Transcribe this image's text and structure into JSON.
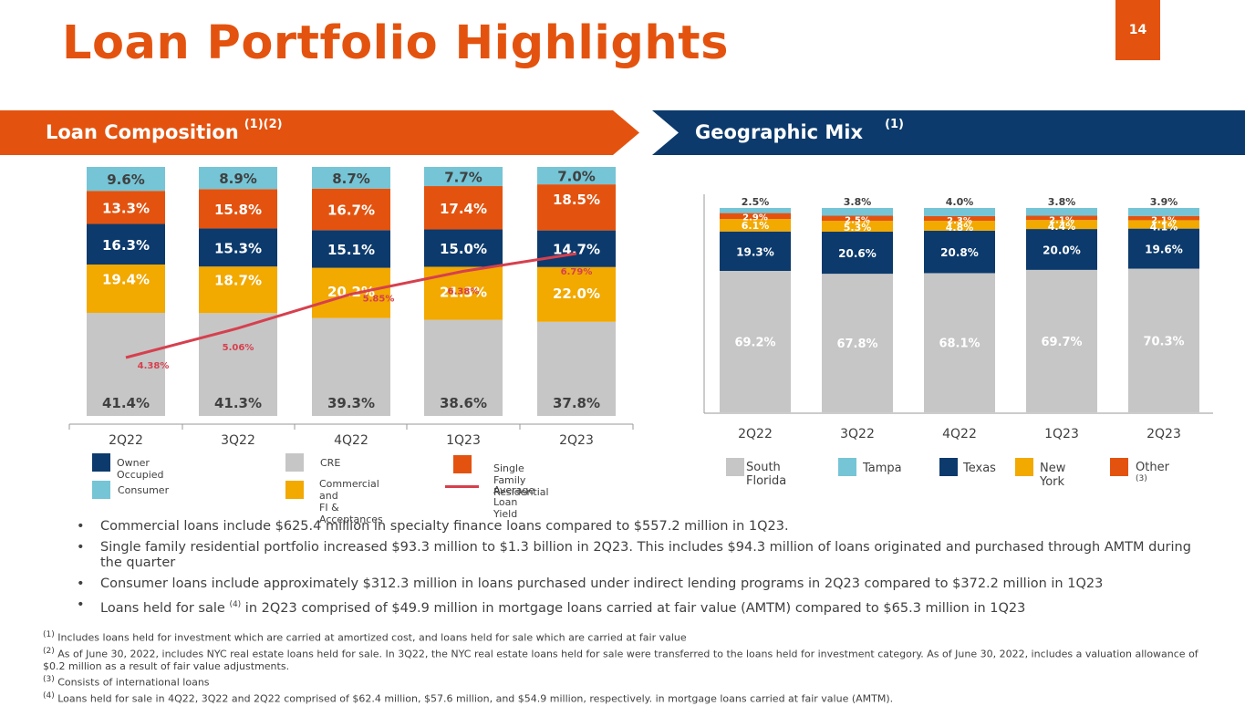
{
  "title": "Loan Portfolio Highlights",
  "page_number": "14",
  "left_banner": {
    "label": "Loan Composition",
    "sup": "(1)(2)"
  },
  "right_banner": {
    "label": "Geographic Mix",
    "sup": "(1)"
  },
  "colors": {
    "orange": "#e3530f",
    "navy": "#0c3a6c",
    "gray": "#c6c6c6",
    "gold": "#f2a900",
    "teal": "#75c5d6",
    "red_line": "#d6404e"
  },
  "chart_data": [
    {
      "type": "bar",
      "stacked": true,
      "title": "Loan Composition",
      "categories": [
        "2Q22",
        "3Q22",
        "4Q22",
        "1Q23",
        "2Q23"
      ],
      "series": [
        {
          "name": "CRE",
          "values": [
            41.4,
            41.3,
            39.3,
            38.6,
            37.8
          ],
          "labels": [
            "41.4%",
            "41.3%",
            "39.3%",
            "38.6%",
            "37.8%"
          ]
        },
        {
          "name": "Commercial and FI & Acceptances",
          "values": [
            19.4,
            18.7,
            20.2,
            21.3,
            22.0
          ],
          "labels": [
            "19.4%",
            "18.7%",
            "20.2%",
            "21.3%",
            "22.0%"
          ]
        },
        {
          "name": "Owner Occupied",
          "values": [
            16.3,
            15.3,
            15.1,
            15.0,
            14.7
          ],
          "labels": [
            "16.3%",
            "15.3%",
            "15.1%",
            "15.0%",
            "14.7%"
          ]
        },
        {
          "name": "Single Family Residential",
          "values": [
            13.3,
            15.8,
            16.7,
            17.4,
            18.5
          ],
          "labels": [
            "13.3%",
            "15.8%",
            "16.7%",
            "17.4%",
            "18.5%"
          ]
        },
        {
          "name": "Consumer",
          "values": [
            9.6,
            8.9,
            8.7,
            7.7,
            7.0
          ],
          "labels": [
            "9.6%",
            "8.9%",
            "8.7%",
            "7.7%",
            "7.0%"
          ]
        }
      ],
      "line": {
        "name": "Average Loan Yield",
        "values": [
          4.38,
          5.06,
          5.85,
          6.38,
          6.79
        ],
        "labels": [
          "4.38%",
          "5.06%",
          "5.85%",
          "6.38%",
          "6.79%"
        ]
      },
      "legend": [
        "Owner Occupied",
        "CRE",
        "Single Family Residential",
        "Consumer",
        "Commercial and FI & Acceptances",
        "Average Loan Yield"
      ],
      "ylim": [
        0,
        100
      ]
    },
    {
      "type": "bar",
      "stacked": true,
      "title": "Geographic Mix",
      "categories": [
        "2Q22",
        "3Q22",
        "4Q22",
        "1Q23",
        "2Q23"
      ],
      "series": [
        {
          "name": "South Florida",
          "values": [
            69.2,
            67.8,
            68.1,
            69.7,
            70.3
          ],
          "labels": [
            "69.2%",
            "67.8%",
            "68.1%",
            "69.7%",
            "70.3%"
          ]
        },
        {
          "name": "Texas",
          "values": [
            19.3,
            20.6,
            20.8,
            20.0,
            19.6
          ],
          "labels": [
            "19.3%",
            "20.6%",
            "20.8%",
            "20.0%",
            "19.6%"
          ]
        },
        {
          "name": "New York",
          "values": [
            6.1,
            5.3,
            4.8,
            4.4,
            4.1
          ],
          "labels": [
            "6.1%",
            "5.3%",
            "4.8%",
            "4.4%",
            "4.1%"
          ]
        },
        {
          "name": "Other",
          "values": [
            2.9,
            2.5,
            2.3,
            2.1,
            2.1
          ],
          "labels": [
            "2.9%",
            "2.5%",
            "2.3%",
            "2.1%",
            "2.1%"
          ]
        },
        {
          "name": "Tampa",
          "values": [
            2.5,
            3.8,
            4.0,
            3.8,
            3.9
          ],
          "labels": [
            "2.5%",
            "3.8%",
            "4.0%",
            "3.8%",
            "3.9%"
          ]
        }
      ],
      "legend": [
        "South Florida",
        "Tampa",
        "Texas",
        "New York",
        "Other (3)"
      ],
      "ylim": [
        0,
        100
      ]
    }
  ],
  "left_legend": [
    {
      "label": "Owner Occupied",
      "color": "#0c3a6c",
      "kind": "box"
    },
    {
      "label": "CRE",
      "color": "#c6c6c6",
      "kind": "box"
    },
    {
      "label": "Single Family Residential",
      "color": "#e3530f",
      "kind": "box"
    },
    {
      "label": "Consumer",
      "color": "#75c5d6",
      "kind": "box"
    },
    {
      "label": "Commercial and\nFI & Acceptances",
      "color": "#f2a900",
      "kind": "box"
    },
    {
      "label": "Average Loan Yield",
      "color": "#d6404e",
      "kind": "line"
    }
  ],
  "right_legend": [
    {
      "label": "South Florida",
      "color": "#c6c6c6"
    },
    {
      "label": "Tampa",
      "color": "#75c5d6"
    },
    {
      "label": "Texas",
      "color": "#0c3a6c"
    },
    {
      "label": "New York",
      "color": "#f2a900"
    },
    {
      "label": "Other",
      "sup": "(3)",
      "color": "#e3530f"
    }
  ],
  "bullets": [
    {
      "text": "Commercial loans include $625.4 million in specialty finance loans compared to $557.2 million in 1Q23."
    },
    {
      "text": "Single family residential portfolio increased $93.3 million to $1.3 billion in 2Q23. This includes $94.3 million of loans originated and purchased through AMTM during the quarter"
    },
    {
      "text": "Consumer loans include approximately $312.3 million in loans purchased under indirect lending programs in 2Q23 compared to $372.2 million in 1Q23"
    },
    {
      "pre": "Loans held for sale ",
      "sup": "(4)",
      "post": " in 2Q23 comprised of $49.9 million in mortgage loans carried at fair value (AMTM) compared to $65.3 million in 1Q23"
    }
  ],
  "footnotes": [
    {
      "sup": "(1)",
      "text": " Includes loans held for investment which are carried at amortized cost, and loans held for sale which are carried at fair value"
    },
    {
      "sup": "(2)",
      "text": " As of June 30, 2022, includes NYC real estate loans held for sale. In 3Q22, the NYC real estate loans held for sale were transferred to the loans held for investment category. As of June 30, 2022, includes a valuation allowance of $0.2 million as a result of fair value adjustments."
    },
    {
      "sup": "(3)",
      "text": " Consists of international loans"
    },
    {
      "sup": "(4)",
      "text": " Loans held for sale in 4Q22, 3Q22 and 2Q22 comprised of $62.4 million,  $57.6 million,  and $54.9 million, respectively. in mortgage loans carried at fair value (AMTM)."
    }
  ]
}
